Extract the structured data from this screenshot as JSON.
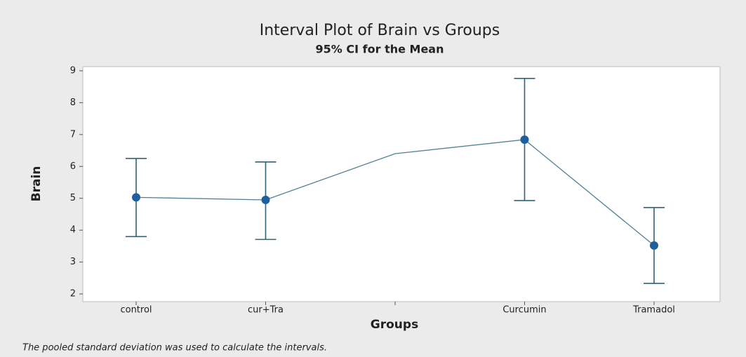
{
  "chart_data": {
    "type": "interval",
    "title": "Interval Plot of Brain vs Groups",
    "subtitle": "95% CI for the Mean",
    "x_label": "Groups",
    "y_label": "Brain",
    "footnote": "The pooled standard deviation was used to calculate the intervals.",
    "categories": [
      "control",
      "cur+Tra",
      null,
      "Curcumin",
      "Tramadol"
    ],
    "values": [
      5.03,
      4.95,
      6.4,
      6.84,
      3.52
    ],
    "lower": [
      3.8,
      3.71,
      null,
      4.93,
      2.33
    ],
    "upper": [
      6.25,
      6.14,
      null,
      8.76,
      4.71
    ],
    "line_color": "#4f8296",
    "marker_color": "#1f5f9e",
    "errorbar_color": "#2d6478",
    "ylim": [
      1.76,
      9.13
    ],
    "yticks": [
      2,
      3,
      4,
      5,
      6,
      7,
      8,
      9
    ]
  }
}
